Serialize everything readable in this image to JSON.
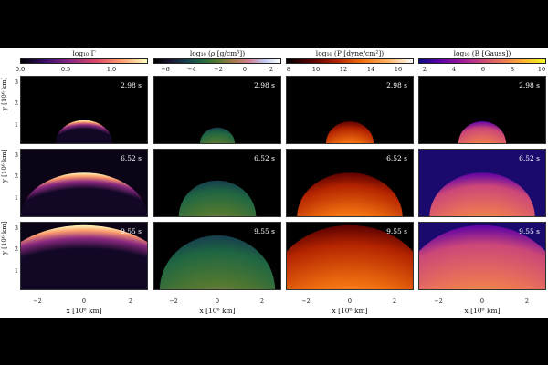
{
  "colorbars": [
    {
      "label": "log₁₀ Γ",
      "ticks": [
        "0.0",
        "0.5",
        "1.0"
      ],
      "cmap": "inferno"
    },
    {
      "label": "log₁₀ (ρ [g/cm³])",
      "ticks": [
        "−6",
        "−4",
        "−2",
        "0",
        "2"
      ],
      "cmap": "cubehelix"
    },
    {
      "label": "log₁₀ (P [dyne/cm²])",
      "ticks": [
        "8",
        "10",
        "12",
        "14",
        "16"
      ],
      "cmap": "gist_heat"
    },
    {
      "label": "log₁₀ (B [Gauss])",
      "ticks": [
        "2",
        "4",
        "6",
        "8",
        "10"
      ],
      "cmap": "plasma"
    }
  ],
  "times": [
    "2.98 s",
    "6.52 s",
    "9.55 s"
  ],
  "ylabel": "y [10⁶ km]",
  "xlabel": "x [10⁶ km]",
  "yticks": [
    "1",
    "2",
    "3"
  ],
  "xticks": [
    "−2",
    "0",
    "2"
  ],
  "colors": {
    "background": "#000000",
    "figure_bg": "#ffffff",
    "time_text": "#ffffff"
  }
}
